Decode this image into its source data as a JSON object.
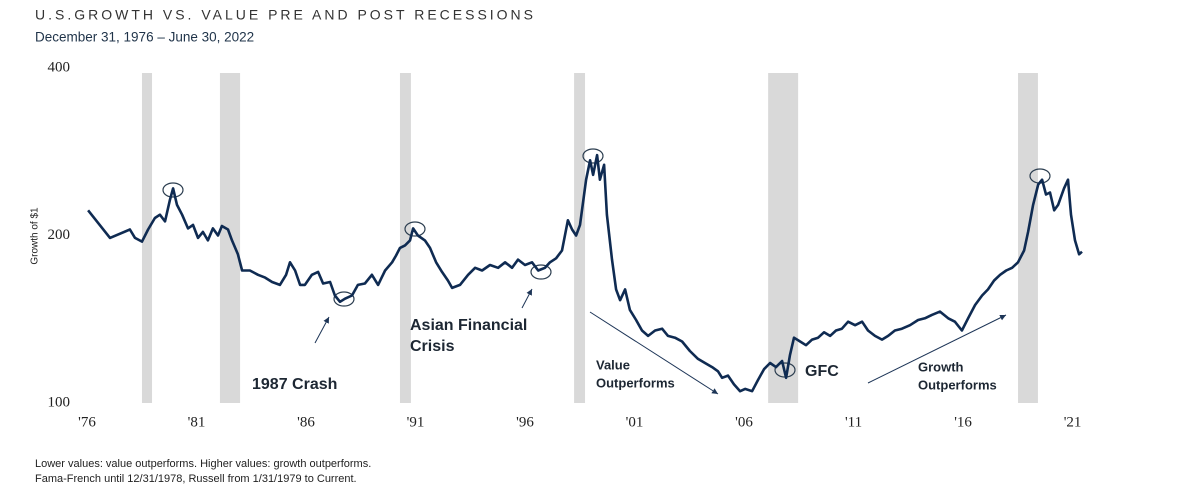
{
  "chart_data": {
    "type": "line",
    "title": "U.S.GROWTH VS. VALUE PRE AND POST RECESSIONS",
    "subtitle": "December 31, 1976 – June 30, 2022",
    "y_label": "Growth of $1",
    "log_scale": true,
    "ylim": [
      100,
      400
    ],
    "yticks": [
      100,
      200,
      400
    ],
    "xlim": [
      1977,
      2022.5
    ],
    "xticks": [
      {
        "value": 1977,
        "label": "'76"
      },
      {
        "value": 1982,
        "label": "'81"
      },
      {
        "value": 1987,
        "label": "'86"
      },
      {
        "value": 1992,
        "label": "'91"
      },
      {
        "value": 1997,
        "label": "'96"
      },
      {
        "value": 2002,
        "label": "'01"
      },
      {
        "value": 2007,
        "label": "'06"
      },
      {
        "value": 2012,
        "label": "'11"
      },
      {
        "value": 2017,
        "label": "'16"
      },
      {
        "value": 2022,
        "label": "'21"
      }
    ],
    "recessions": [
      [
        1979.51,
        1979.97
      ],
      [
        1983.07,
        1983.99
      ],
      [
        1991.29,
        1991.79
      ],
      [
        1999.24,
        1999.74
      ],
      [
        2008.1,
        2009.47
      ],
      [
        2019.51,
        2020.42
      ]
    ],
    "recession_color": "#d9d9d9",
    "x": [
      1977.05,
      1978.05,
      1978.96,
      1979.19,
      1979.51,
      1979.79,
      1980.1,
      1980.33,
      1980.56,
      1980.79,
      1980.93,
      1981.11,
      1981.34,
      1981.61,
      1981.84,
      1982.07,
      1982.29,
      1982.52,
      1982.75,
      1982.98,
      1983.16,
      1983.44,
      1983.62,
      1983.89,
      1984.08,
      1984.44,
      1984.81,
      1985.13,
      1985.45,
      1985.81,
      1986.09,
      1986.27,
      1986.5,
      1986.73,
      1986.95,
      1987.27,
      1987.55,
      1987.78,
      1988.1,
      1988.32,
      1988.55,
      1988.78,
      1989.1,
      1989.37,
      1989.69,
      1990.01,
      1990.29,
      1990.61,
      1990.93,
      1991.11,
      1991.29,
      1991.52,
      1991.75,
      1991.89,
      1992.11,
      1992.43,
      1992.66,
      1992.94,
      1993.21,
      1993.48,
      1993.67,
      1994.03,
      1994.4,
      1994.72,
      1995.04,
      1995.4,
      1995.77,
      1996.09,
      1996.41,
      1996.68,
      1997.0,
      1997.32,
      1997.6,
      1997.91,
      1998.14,
      1998.42,
      1998.69,
      1998.96,
      1999.15,
      1999.33,
      1999.51,
      1999.79,
      1999.97,
      2000.11,
      2000.29,
      2000.42,
      2000.61,
      2000.74,
      2000.97,
      2001.16,
      2001.34,
      2001.57,
      2001.79,
      2002.07,
      2002.34,
      2002.62,
      2002.94,
      2003.26,
      2003.53,
      2003.85,
      2004.17,
      2004.53,
      2004.9,
      2005.22,
      2005.54,
      2005.81,
      2006.0,
      2006.27,
      2006.54,
      2006.82,
      2007.05,
      2007.37,
      2007.64,
      2007.91,
      2008.19,
      2008.46,
      2008.74,
      2008.92,
      2009.1,
      2009.28,
      2009.56,
      2009.83,
      2010.11,
      2010.38,
      2010.65,
      2010.93,
      2011.2,
      2011.47,
      2011.75,
      2012.07,
      2012.39,
      2012.66,
      2012.98,
      2013.3,
      2013.58,
      2013.89,
      2014.21,
      2014.58,
      2014.95,
      2015.26,
      2015.58,
      2015.95,
      2016.32,
      2016.63,
      2016.95,
      2017.23,
      2017.55,
      2017.87,
      2018.14,
      2018.42,
      2018.69,
      2018.97,
      2019.24,
      2019.51,
      2019.79,
      2019.97,
      2020.2,
      2020.43,
      2020.61,
      2020.79,
      2020.97,
      2021.16,
      2021.34,
      2021.61,
      2021.79,
      2021.93,
      2022.11,
      2022.3,
      2022.43
    ],
    "series": [
      {
        "name": "Growth of $1",
        "color": "#0f2b52",
        "values": [
          222,
          198,
          205,
          198,
          195,
          205,
          215,
          218,
          212,
          232,
          243,
          227,
          218,
          206,
          209,
          198,
          203,
          196,
          206,
          200,
          208,
          205,
          196,
          185,
          173,
          173,
          170,
          168,
          165,
          163,
          170,
          179,
          173,
          163,
          163,
          170,
          172,
          164,
          165,
          156,
          152,
          154,
          156,
          163,
          164,
          170,
          163,
          173,
          179,
          184,
          190,
          192,
          196,
          206,
          200,
          196,
          190,
          179,
          172,
          166,
          161,
          163,
          170,
          175,
          173,
          177,
          175,
          179,
          175,
          181,
          177,
          179,
          173,
          175,
          179,
          182,
          188,
          213,
          205,
          200,
          209,
          252,
          273,
          257,
          279,
          252,
          268,
          218,
          181,
          160,
          153,
          160,
          147,
          141,
          135,
          132,
          135,
          136,
          132,
          131,
          129,
          124,
          120,
          118,
          116,
          114,
          111,
          112,
          108,
          105,
          106,
          105,
          110,
          115,
          118,
          116,
          119,
          111,
          122,
          131,
          129,
          127,
          130,
          131,
          134,
          132,
          135,
          136,
          140,
          138,
          140,
          135,
          132,
          130,
          132,
          135,
          136,
          138,
          141,
          142,
          144,
          146,
          142,
          140,
          135,
          142,
          150,
          156,
          160,
          166,
          170,
          173,
          175,
          179,
          188,
          203,
          227,
          247,
          252,
          237,
          239,
          222,
          227,
          243,
          252,
          218,
          196,
          185,
          187
        ]
      }
    ],
    "annotations": [
      [
        "1987 Crash"
      ],
      [
        "Asian Financial",
        "Crisis"
      ],
      [
        "Value",
        "Outperforms"
      ],
      [
        "GFC"
      ],
      [
        "Growth",
        "Outperforms"
      ]
    ],
    "notes": [
      "Lower values: value outperforms. Higher values: growth outperforms.",
      "Fama-French until 12/31/1978, Russell from 1/31/1979 to Current."
    ]
  }
}
